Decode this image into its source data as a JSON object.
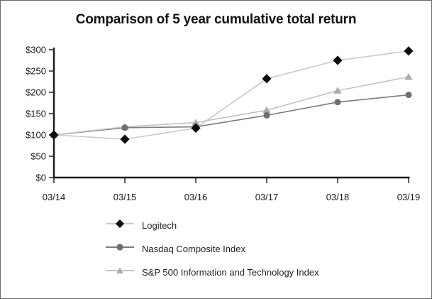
{
  "chart": {
    "title": "Comparison of 5 year cumulative total return"
  },
  "chart_data": {
    "type": "line",
    "title": "Comparison of 5 year cumulative total return",
    "categories": [
      "03/14",
      "03/15",
      "03/16",
      "03/17",
      "03/18",
      "03/19"
    ],
    "series": [
      {
        "name": "Logitech",
        "marker": "diamond",
        "line_color": "#c9c9c9",
        "marker_color": "#0d0d0d",
        "values": [
          100,
          90,
          116,
          232,
          275,
          297
        ]
      },
      {
        "name": "Nasdaq Composite Index",
        "marker": "circle",
        "line_color": "#7d7d7d",
        "marker_color": "#6e6e6e",
        "values": [
          100,
          117,
          119,
          146,
          177,
          194
        ]
      },
      {
        "name": "S&P 500 Information and Technology Index",
        "marker": "triangle",
        "line_color": "#c2c2c2",
        "marker_color": "#ababab",
        "values": [
          100,
          119,
          129,
          158,
          204,
          236
        ]
      }
    ],
    "xlabel": "",
    "ylabel": "",
    "ylim": [
      0,
      300
    ],
    "ytick_step": 50,
    "ytick_labels": [
      "$0",
      "$50",
      "$100",
      "$150",
      "$200",
      "$250",
      "$300"
    ],
    "grid": false,
    "legend_position": "bottom-left",
    "axis_color": "#1a1a1a"
  }
}
